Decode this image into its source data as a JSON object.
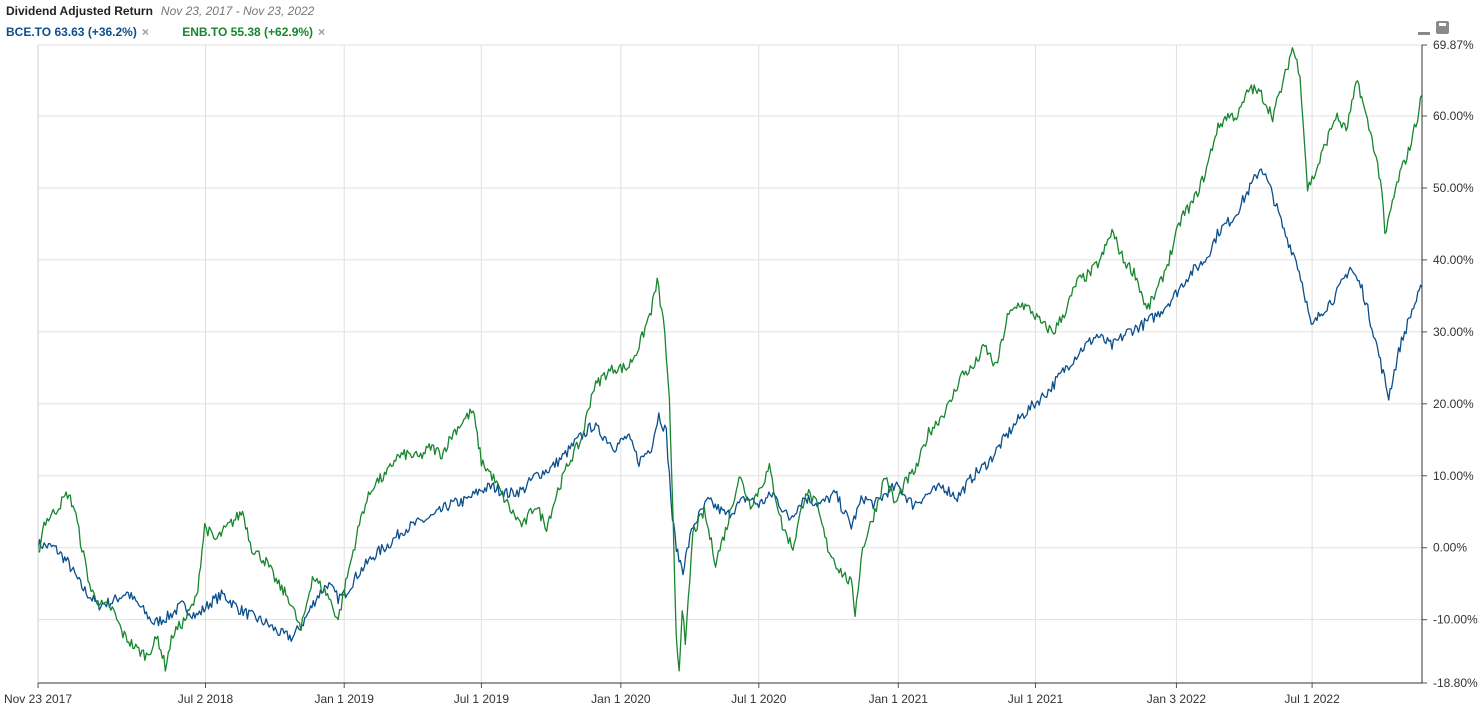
{
  "header": {
    "title": "Dividend Adjusted Return",
    "date_range": "Nov 23, 2017 - Nov 23, 2022"
  },
  "legend": [
    {
      "label": "BCE.TO 63.63 (+36.2%)",
      "color": "#0b4f8c",
      "close": "×"
    },
    {
      "label": "ENB.TO 55.38 (+62.9%)",
      "color": "#17862e",
      "close": "×"
    }
  ],
  "chart_data": {
    "type": "line",
    "x_range": [
      "2017-11-23",
      "2022-11-23"
    ],
    "ylim": [
      -18.8,
      69.87
    ],
    "y_axis_side": "right",
    "grid": true,
    "x_tick_labels": [
      "Nov 23 2017",
      "Jul 2 2018",
      "Jan 1 2019",
      "Jul 1 2019",
      "Jan 1 2020",
      "Jul 1 2020",
      "Jan 1 2021",
      "Jul 1 2021",
      "Jan 3 2022",
      "Jul 1 2022"
    ],
    "x_tick_dates": [
      "2017-11-23",
      "2018-07-02",
      "2019-01-01",
      "2019-07-01",
      "2020-01-01",
      "2020-07-01",
      "2021-01-01",
      "2021-07-01",
      "2022-01-03",
      "2022-07-01"
    ],
    "y_tick_labels": [
      "69.87%",
      "60.00%",
      "50.00%",
      "40.00%",
      "30.00%",
      "20.00%",
      "10.00%",
      "0.00%",
      "-10.00%",
      "-18.80%"
    ],
    "y_tick_values": [
      69.87,
      60,
      50,
      40,
      30,
      20,
      10,
      0,
      -10,
      -18.8
    ],
    "series": [
      {
        "name": "BCE.TO",
        "color": "#0b4f8c",
        "points": [
          [
            "2017-11-23",
            0.5
          ],
          [
            "2017-12-15",
            0.0
          ],
          [
            "2018-01-01",
            -2.0
          ],
          [
            "2018-01-20",
            -5.5
          ],
          [
            "2018-02-10",
            -8.0
          ],
          [
            "2018-03-01",
            -7.5
          ],
          [
            "2018-03-20",
            -6.2
          ],
          [
            "2018-04-05",
            -8.0
          ],
          [
            "2018-04-25",
            -10.5
          ],
          [
            "2018-05-15",
            -9.5
          ],
          [
            "2018-06-01",
            -8.0
          ],
          [
            "2018-06-20",
            -9.5
          ],
          [
            "2018-07-10",
            -7.5
          ],
          [
            "2018-07-25",
            -6.5
          ],
          [
            "2018-08-15",
            -8.5
          ],
          [
            "2018-09-01",
            -9.5
          ],
          [
            "2018-09-20",
            -10.5
          ],
          [
            "2018-10-10",
            -12.0
          ],
          [
            "2018-10-25",
            -12.5
          ],
          [
            "2018-11-10",
            -10.0
          ],
          [
            "2018-11-25",
            -7.0
          ],
          [
            "2018-12-10",
            -5.0
          ],
          [
            "2018-12-24",
            -7.0
          ],
          [
            "2019-01-01",
            -6.5
          ],
          [
            "2019-01-20",
            -3.5
          ],
          [
            "2019-02-10",
            -1.0
          ],
          [
            "2019-03-01",
            0.5
          ],
          [
            "2019-03-20",
            2.5
          ],
          [
            "2019-04-10",
            3.5
          ],
          [
            "2019-05-01",
            4.5
          ],
          [
            "2019-05-20",
            6.0
          ],
          [
            "2019-06-10",
            6.5
          ],
          [
            "2019-06-30",
            8.0
          ],
          [
            "2019-07-15",
            8.5
          ],
          [
            "2019-08-05",
            7.5
          ],
          [
            "2019-08-25",
            8.0
          ],
          [
            "2019-09-10",
            10.0
          ],
          [
            "2019-09-30",
            11.0
          ],
          [
            "2019-10-20",
            13.0
          ],
          [
            "2019-11-05",
            15.0
          ],
          [
            "2019-11-25",
            17.0
          ],
          [
            "2019-12-10",
            15.5
          ],
          [
            "2019-12-24",
            14.0
          ],
          [
            "2020-01-10",
            15.5
          ],
          [
            "2020-01-25",
            12.0
          ],
          [
            "2020-02-10",
            14.0
          ],
          [
            "2020-02-20",
            18.5
          ],
          [
            "2020-03-01",
            16.0
          ],
          [
            "2020-03-09",
            4.0
          ],
          [
            "2020-03-16",
            -1.0
          ],
          [
            "2020-03-23",
            -3.0
          ],
          [
            "2020-04-05",
            3.0
          ],
          [
            "2020-04-25",
            6.5
          ],
          [
            "2020-05-20",
            4.5
          ],
          [
            "2020-06-15",
            7.0
          ],
          [
            "2020-07-01",
            6.0
          ],
          [
            "2020-07-20",
            7.5
          ],
          [
            "2020-08-10",
            4.0
          ],
          [
            "2020-08-30",
            7.0
          ],
          [
            "2020-09-20",
            6.0
          ],
          [
            "2020-10-10",
            7.5
          ],
          [
            "2020-10-31",
            3.0
          ],
          [
            "2020-11-15",
            7.0
          ],
          [
            "2020-12-01",
            6.0
          ],
          [
            "2020-12-20",
            8.0
          ],
          [
            "2021-01-01",
            8.5
          ],
          [
            "2021-01-20",
            6.0
          ],
          [
            "2021-02-10",
            7.5
          ],
          [
            "2021-03-01",
            8.5
          ],
          [
            "2021-03-20",
            7.0
          ],
          [
            "2021-04-10",
            10.0
          ],
          [
            "2021-05-01",
            12.0
          ],
          [
            "2021-05-20",
            15.0
          ],
          [
            "2021-06-10",
            18.0
          ],
          [
            "2021-06-30",
            20.0
          ],
          [
            "2021-07-20",
            22.0
          ],
          [
            "2021-08-10",
            25.0
          ],
          [
            "2021-08-30",
            27.5
          ],
          [
            "2021-09-20",
            29.5
          ],
          [
            "2021-10-10",
            28.0
          ],
          [
            "2021-10-31",
            30.0
          ],
          [
            "2021-11-20",
            31.0
          ],
          [
            "2021-12-10",
            32.5
          ],
          [
            "2021-12-31",
            35.0
          ],
          [
            "2022-01-20",
            38.0
          ],
          [
            "2022-02-10",
            40.0
          ],
          [
            "2022-02-28",
            44.0
          ],
          [
            "2022-03-20",
            46.0
          ],
          [
            "2022-04-10",
            50.0
          ],
          [
            "2022-04-25",
            53.0
          ],
          [
            "2022-05-10",
            49.0
          ],
          [
            "2022-05-25",
            44.0
          ],
          [
            "2022-06-10",
            40.0
          ],
          [
            "2022-06-20",
            36.0
          ],
          [
            "2022-06-30",
            30.5
          ],
          [
            "2022-07-15",
            33.0
          ],
          [
            "2022-08-01",
            35.0
          ],
          [
            "2022-08-20",
            39.0
          ],
          [
            "2022-09-05",
            36.0
          ],
          [
            "2022-09-20",
            30.0
          ],
          [
            "2022-10-01",
            25.0
          ],
          [
            "2022-10-10",
            21.0
          ],
          [
            "2022-10-25",
            28.0
          ],
          [
            "2022-11-10",
            33.0
          ],
          [
            "2022-11-23",
            36.2
          ]
        ]
      },
      {
        "name": "ENB.TO",
        "color": "#17862e",
        "points": [
          [
            "2017-11-23",
            -1.0
          ],
          [
            "2017-12-01",
            3.5
          ],
          [
            "2017-12-15",
            5.0
          ],
          [
            "2018-01-01",
            7.5
          ],
          [
            "2018-01-10",
            5.5
          ],
          [
            "2018-01-20",
            0.0
          ],
          [
            "2018-02-01",
            -6.0
          ],
          [
            "2018-02-15",
            -8.0
          ],
          [
            "2018-03-01",
            -8.5
          ],
          [
            "2018-03-15",
            -12.0
          ],
          [
            "2018-04-01",
            -14.0
          ],
          [
            "2018-04-15",
            -15.0
          ],
          [
            "2018-04-30",
            -12.5
          ],
          [
            "2018-05-10",
            -16.5
          ],
          [
            "2018-05-20",
            -12.0
          ],
          [
            "2018-06-05",
            -10.0
          ],
          [
            "2018-06-20",
            -7.0
          ],
          [
            "2018-07-01",
            3.0
          ],
          [
            "2018-07-15",
            1.0
          ],
          [
            "2018-08-01",
            3.0
          ],
          [
            "2018-08-20",
            5.0
          ],
          [
            "2018-09-01",
            0.0
          ],
          [
            "2018-09-20",
            -2.0
          ],
          [
            "2018-10-05",
            -5.0
          ],
          [
            "2018-10-20",
            -7.0
          ],
          [
            "2018-11-05",
            -11.5
          ],
          [
            "2018-11-20",
            -4.0
          ],
          [
            "2018-12-10",
            -6.5
          ],
          [
            "2018-12-24",
            -10.0
          ],
          [
            "2019-01-05",
            -4.0
          ],
          [
            "2019-01-25",
            5.0
          ],
          [
            "2019-02-10",
            9.0
          ],
          [
            "2019-02-25",
            10.0
          ],
          [
            "2019-03-10",
            12.5
          ],
          [
            "2019-03-25",
            13.0
          ],
          [
            "2019-04-10",
            12.5
          ],
          [
            "2019-04-25",
            14.0
          ],
          [
            "2019-05-10",
            13.0
          ],
          [
            "2019-05-25",
            16.0
          ],
          [
            "2019-06-10",
            18.0
          ],
          [
            "2019-06-20",
            19.0
          ],
          [
            "2019-07-01",
            12.0
          ],
          [
            "2019-07-15",
            10.0
          ],
          [
            "2019-07-25",
            8.0
          ],
          [
            "2019-08-10",
            5.0
          ],
          [
            "2019-08-25",
            3.0
          ],
          [
            "2019-09-10",
            6.0
          ],
          [
            "2019-09-25",
            3.0
          ],
          [
            "2019-10-10",
            8.0
          ],
          [
            "2019-10-25",
            12.0
          ],
          [
            "2019-11-10",
            15.0
          ],
          [
            "2019-11-25",
            22.0
          ],
          [
            "2019-12-10",
            24.0
          ],
          [
            "2019-12-24",
            25.0
          ],
          [
            "2020-01-10",
            25.0
          ],
          [
            "2020-01-25",
            28.0
          ],
          [
            "2020-02-10",
            33.0
          ],
          [
            "2020-02-18",
            37.0
          ],
          [
            "2020-02-28",
            30.0
          ],
          [
            "2020-03-05",
            20.0
          ],
          [
            "2020-03-10",
            3.0
          ],
          [
            "2020-03-14",
            -12.0
          ],
          [
            "2020-03-18",
            -17.0
          ],
          [
            "2020-03-22",
            -8.0
          ],
          [
            "2020-03-26",
            -14.0
          ],
          [
            "2020-04-05",
            2.0
          ],
          [
            "2020-04-20",
            5.0
          ],
          [
            "2020-05-05",
            -2.0
          ],
          [
            "2020-05-20",
            3.0
          ],
          [
            "2020-06-05",
            10.0
          ],
          [
            "2020-06-20",
            6.0
          ],
          [
            "2020-07-01",
            8.0
          ],
          [
            "2020-07-15",
            11.0
          ],
          [
            "2020-08-01",
            3.0
          ],
          [
            "2020-08-15",
            0.0
          ],
          [
            "2020-09-01",
            8.0
          ],
          [
            "2020-09-15",
            6.0
          ],
          [
            "2020-09-30",
            0.0
          ],
          [
            "2020-10-15",
            -3.0
          ],
          [
            "2020-10-31",
            -5.0
          ],
          [
            "2020-11-05",
            -9.0
          ],
          [
            "2020-11-15",
            0.0
          ],
          [
            "2020-12-01",
            5.0
          ],
          [
            "2020-12-15",
            10.0
          ],
          [
            "2020-12-28",
            6.0
          ],
          [
            "2021-01-10",
            9.0
          ],
          [
            "2021-01-25",
            11.0
          ],
          [
            "2021-02-10",
            16.0
          ],
          [
            "2021-02-25",
            18.0
          ],
          [
            "2021-03-10",
            20.0
          ],
          [
            "2021-03-25",
            24.0
          ],
          [
            "2021-04-10",
            25.0
          ],
          [
            "2021-04-25",
            28.0
          ],
          [
            "2021-05-10",
            25.0
          ],
          [
            "2021-05-25",
            32.0
          ],
          [
            "2021-06-10",
            34.0
          ],
          [
            "2021-06-25",
            33.0
          ],
          [
            "2021-07-10",
            31.0
          ],
          [
            "2021-07-25",
            30.0
          ],
          [
            "2021-08-10",
            33.0
          ],
          [
            "2021-08-25",
            37.0
          ],
          [
            "2021-09-10",
            38.0
          ],
          [
            "2021-09-25",
            40.0
          ],
          [
            "2021-10-10",
            44.0
          ],
          [
            "2021-10-25",
            40.0
          ],
          [
            "2021-11-10",
            38.0
          ],
          [
            "2021-11-25",
            33.0
          ],
          [
            "2021-12-10",
            36.0
          ],
          [
            "2021-12-24",
            40.0
          ],
          [
            "2022-01-10",
            46.0
          ],
          [
            "2022-01-25",
            48.0
          ],
          [
            "2022-02-10",
            52.0
          ],
          [
            "2022-02-25",
            58.0
          ],
          [
            "2022-03-10",
            60.0
          ],
          [
            "2022-03-25",
            60.0
          ],
          [
            "2022-04-10",
            64.0
          ],
          [
            "2022-04-25",
            63.0
          ],
          [
            "2022-05-10",
            60.0
          ],
          [
            "2022-05-25",
            65.0
          ],
          [
            "2022-06-05",
            69.5
          ],
          [
            "2022-06-15",
            66.0
          ],
          [
            "2022-06-25",
            50.0
          ],
          [
            "2022-07-05",
            52.0
          ],
          [
            "2022-07-15",
            55.0
          ],
          [
            "2022-08-01",
            60.0
          ],
          [
            "2022-08-15",
            58.0
          ],
          [
            "2022-08-30",
            65.0
          ],
          [
            "2022-09-10",
            60.0
          ],
          [
            "2022-09-20",
            56.0
          ],
          [
            "2022-10-01",
            50.0
          ],
          [
            "2022-10-05",
            43.0
          ],
          [
            "2022-10-15",
            48.0
          ],
          [
            "2022-10-25",
            52.0
          ],
          [
            "2022-11-05",
            55.0
          ],
          [
            "2022-11-15",
            59.0
          ],
          [
            "2022-11-23",
            62.9
          ]
        ]
      }
    ]
  }
}
